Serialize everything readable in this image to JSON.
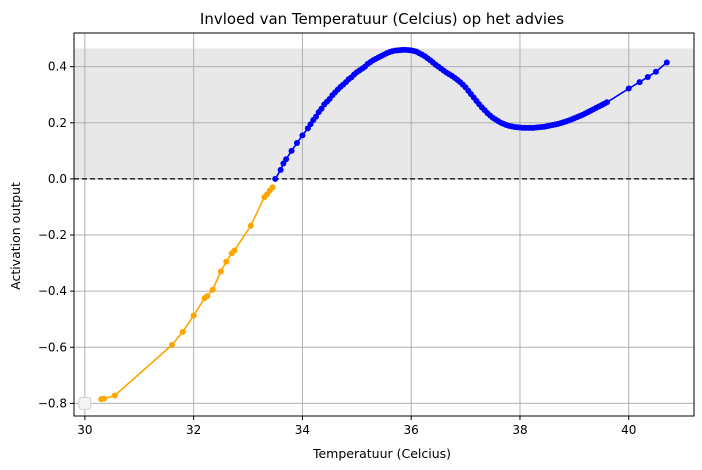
{
  "chart_data": {
    "type": "line",
    "title": "Invloed van Temperatuur (Celcius) op het advies",
    "xlabel": "Temperatuur (Celcius)",
    "ylabel": "Activation output",
    "xlim": [
      29.8,
      41.2
    ],
    "ylim": [
      -0.845,
      0.52
    ],
    "xticks": [
      30,
      32,
      34,
      36,
      38,
      40
    ],
    "yticks": [
      -0.8,
      -0.6,
      -0.4,
      -0.2,
      0.0,
      0.2,
      0.4
    ],
    "ytick_labels": [
      "−0.8",
      "−0.6",
      "−0.4",
      "−0.2",
      "0.0",
      "0.2",
      "0.4"
    ],
    "grid": true,
    "shaded_region": {
      "y0": 0.0,
      "y1": 0.465,
      "color": "#e8e8e8"
    },
    "reference_line": {
      "y": 0.0,
      "style": "dashed",
      "color": "#000000"
    },
    "highlight_point": {
      "x": 30.0,
      "y": -0.8
    },
    "colors": {
      "negative": "#ffa500",
      "positive": "#0000ff"
    },
    "series": [
      {
        "color": "#ffa500",
        "x": [
          30.3,
          30.35,
          30.55,
          31.6,
          31.8,
          32.0,
          32.2,
          32.25,
          32.35,
          32.5,
          32.6,
          32.7,
          32.75,
          33.05,
          33.3,
          33.35,
          33.4,
          33.45
        ],
        "y": [
          -0.785,
          -0.783,
          -0.772,
          -0.592,
          -0.545,
          -0.487,
          -0.425,
          -0.418,
          -0.395,
          -0.33,
          -0.295,
          -0.265,
          -0.255,
          -0.167,
          -0.065,
          -0.055,
          -0.042,
          -0.03
        ]
      },
      {
        "color": "#0000ff",
        "x": [
          33.5,
          33.6,
          33.65,
          33.7,
          33.8,
          33.9,
          34.0,
          34.1,
          34.15,
          34.2,
          34.25,
          34.3,
          34.35,
          34.4,
          34.45,
          34.5,
          34.55,
          34.6,
          34.65,
          34.7,
          34.75,
          34.8,
          34.85,
          34.9,
          34.95,
          35.0,
          35.05,
          35.1,
          35.15,
          35.2,
          35.25,
          35.3,
          35.35,
          35.4,
          35.45,
          35.5,
          35.55,
          35.6,
          35.65,
          35.7,
          35.75,
          35.8,
          35.85,
          35.9,
          35.95,
          36.0,
          36.05,
          36.1,
          36.15,
          36.2,
          36.25,
          36.3,
          36.35,
          36.4,
          36.45,
          36.5,
          36.55,
          36.6,
          36.65,
          36.7,
          36.75,
          36.8,
          36.85,
          36.9,
          36.95,
          37.0,
          37.05,
          37.1,
          37.15,
          37.2,
          37.25,
          37.3,
          37.35,
          37.4,
          37.45,
          37.5,
          37.55,
          37.6,
          37.65,
          37.7,
          37.75,
          37.8,
          37.85,
          37.9,
          37.95,
          38.0,
          38.05,
          38.1,
          38.15,
          38.2,
          38.25,
          38.3,
          38.35,
          38.4,
          38.45,
          38.5,
          38.55,
          38.6,
          38.65,
          38.7,
          38.75,
          38.8,
          38.85,
          38.9,
          38.95,
          39.0,
          39.05,
          39.1,
          39.15,
          39.2,
          39.25,
          39.3,
          39.35,
          39.4,
          39.45,
          39.5,
          39.55,
          39.6,
          40.0,
          40.2,
          40.35,
          40.5,
          40.7
        ],
        "y": [
          0.0,
          0.032,
          0.055,
          0.07,
          0.1,
          0.128,
          0.155,
          0.18,
          0.195,
          0.21,
          0.222,
          0.238,
          0.25,
          0.265,
          0.275,
          0.285,
          0.298,
          0.308,
          0.318,
          0.328,
          0.336,
          0.345,
          0.355,
          0.362,
          0.372,
          0.38,
          0.387,
          0.393,
          0.4,
          0.41,
          0.416,
          0.423,
          0.428,
          0.433,
          0.438,
          0.443,
          0.448,
          0.452,
          0.455,
          0.457,
          0.458,
          0.459,
          0.46,
          0.46,
          0.459,
          0.458,
          0.456,
          0.453,
          0.448,
          0.443,
          0.437,
          0.43,
          0.423,
          0.415,
          0.407,
          0.4,
          0.393,
          0.386,
          0.379,
          0.373,
          0.367,
          0.36,
          0.353,
          0.345,
          0.336,
          0.326,
          0.314,
          0.302,
          0.29,
          0.278,
          0.266,
          0.255,
          0.245,
          0.235,
          0.226,
          0.218,
          0.212,
          0.206,
          0.2,
          0.196,
          0.192,
          0.189,
          0.187,
          0.185,
          0.184,
          0.183,
          0.182,
          0.182,
          0.182,
          0.182,
          0.182,
          0.183,
          0.184,
          0.185,
          0.186,
          0.188,
          0.19,
          0.192,
          0.194,
          0.196,
          0.199,
          0.202,
          0.205,
          0.208,
          0.212,
          0.216,
          0.22,
          0.224,
          0.228,
          0.233,
          0.238,
          0.243,
          0.248,
          0.253,
          0.258,
          0.263,
          0.268,
          0.273,
          0.322,
          0.345,
          0.363,
          0.382,
          0.415
        ]
      }
    ]
  }
}
